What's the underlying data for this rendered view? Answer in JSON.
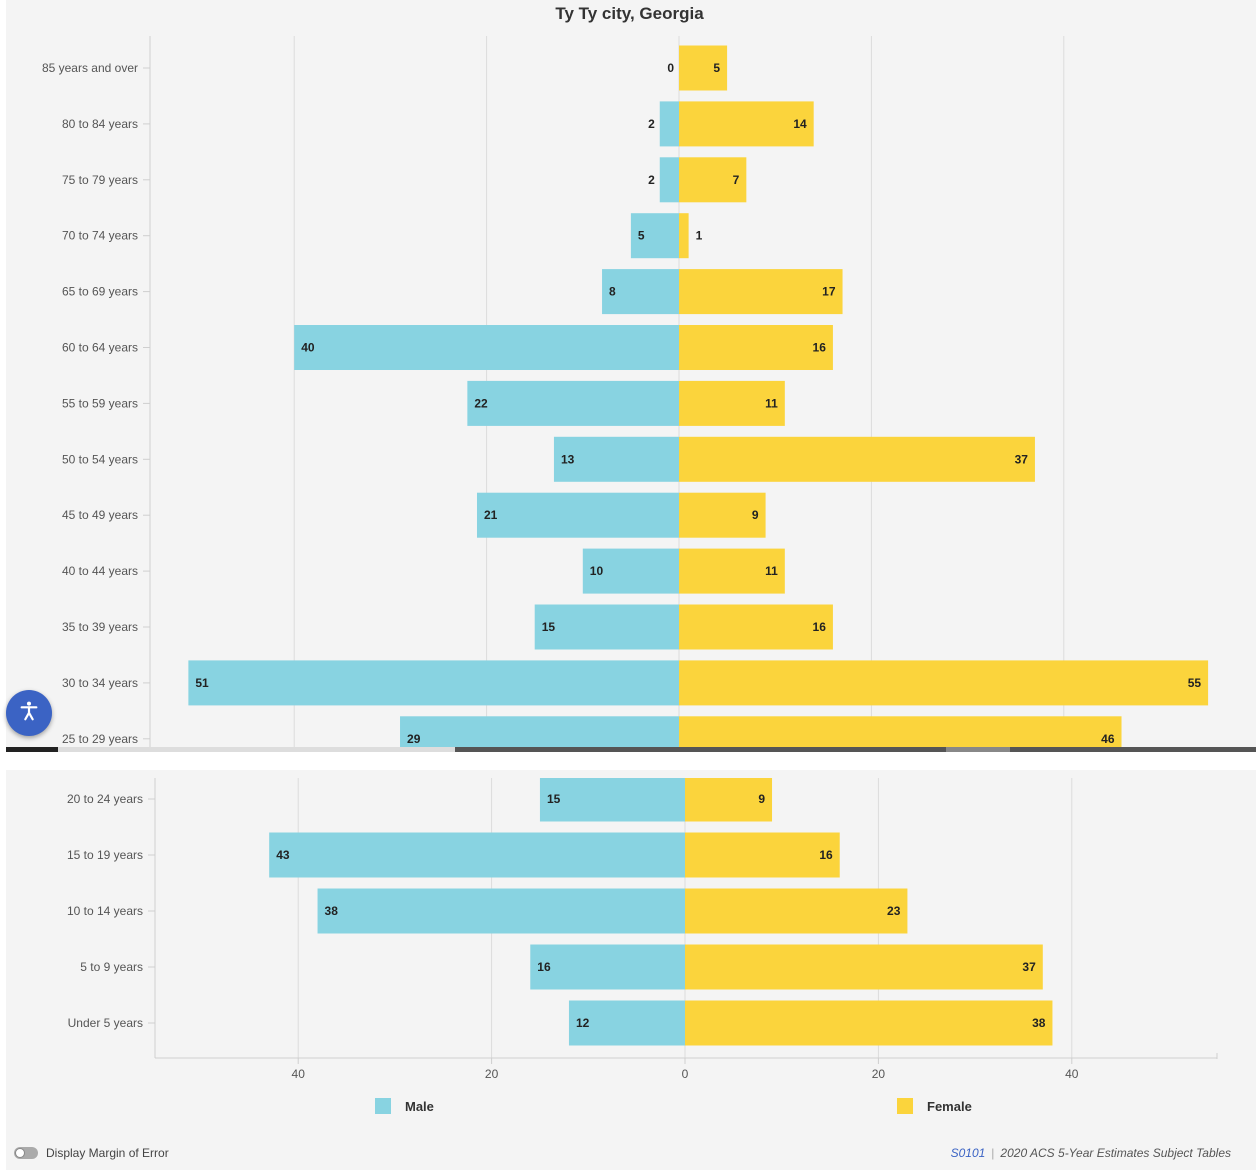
{
  "chart_data": {
    "type": "bar",
    "orientation": "horizontal",
    "title": "Ty Ty city, Georgia",
    "categories": [
      "85 years and over",
      "80 to 84 years",
      "75 to 79 years",
      "70 to 74 years",
      "65 to 69 years",
      "60 to 64 years",
      "55 to 59 years",
      "50 to 54 years",
      "45 to 49 years",
      "40 to 44 years",
      "35 to 39 years",
      "30 to 34 years",
      "25 to 29 years",
      "20 to 24 years",
      "15 to 19 years",
      "10 to 14 years",
      "5 to 9 years",
      "Under 5 years"
    ],
    "series": [
      {
        "name": "Male",
        "color": "#88d3e1",
        "values": [
          0,
          2,
          2,
          5,
          8,
          40,
          22,
          13,
          21,
          10,
          15,
          51,
          29,
          15,
          43,
          38,
          16,
          12
        ]
      },
      {
        "name": "Female",
        "color": "#fbd43c",
        "values": [
          5,
          14,
          7,
          1,
          17,
          16,
          11,
          37,
          9,
          11,
          16,
          55,
          46,
          9,
          16,
          23,
          37,
          38
        ]
      }
    ],
    "x_tick_labels": [
      "40",
      "20",
      "0",
      "20",
      "40"
    ],
    "x_ticks": [
      -40,
      -20,
      0,
      20,
      40
    ],
    "grid": true,
    "legend_position": "bottom"
  },
  "controls": {
    "margin_of_error_label": "Display Margin of Error"
  },
  "source": {
    "code": "S0101",
    "separator": "|",
    "text": "2020 ACS 5-Year Estimates Subject Tables"
  },
  "icons": {
    "accessibility": "accessibility-icon"
  }
}
